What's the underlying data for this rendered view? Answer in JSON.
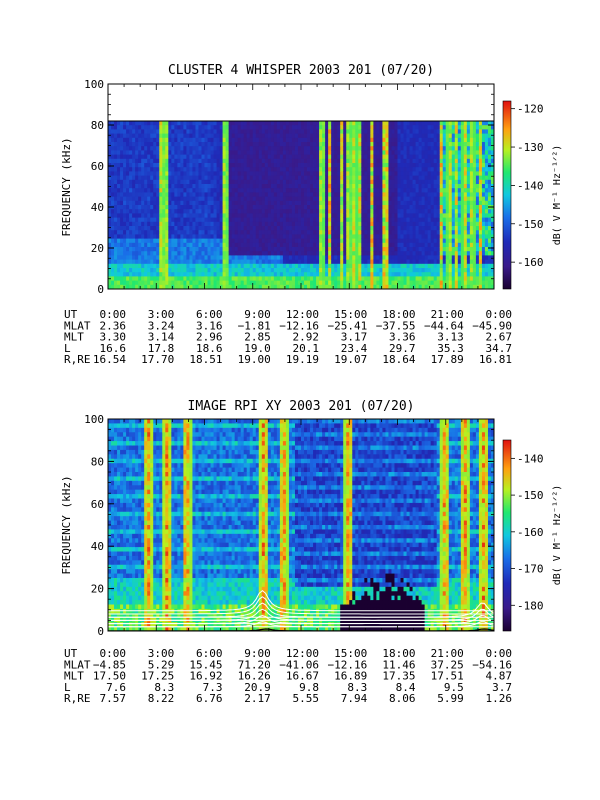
{
  "chart_data": [
    {
      "type": "heatmap",
      "title": "CLUSTER 4 WHISPER 2003 201 (07/20)",
      "ylabel": "FREQUENCY (kHz)",
      "colorbar_label": "dB( V M⁻¹ Hz⁻¹ᐟ²)",
      "ylim": [
        0,
        100
      ],
      "yticks": [
        "0",
        "20",
        "40",
        "60",
        "80",
        "100"
      ],
      "data_max_freq_khz": 80,
      "colorbar_range_db": [
        -167,
        -118
      ],
      "colorbar_ticks": [
        "-120",
        "-130",
        "-140",
        "-150",
        "-160"
      ],
      "colormap": "rainbow (dark blue/purple low, red high)",
      "x_row_labels": [
        "UT",
        "MLAT",
        "MLT",
        "L",
        "R,RE"
      ],
      "x": [
        "0:00",
        "3:00",
        "6:00",
        "9:00",
        "12:00",
        "15:00",
        "18:00",
        "21:00",
        "0:00"
      ],
      "ephemeris": {
        "MLAT": [
          "2.36",
          "3.24",
          "3.16",
          "−1.81",
          "−12.16",
          "−25.41",
          "−37.55",
          "−44.64",
          "−45.90"
        ],
        "MLT": [
          "3.30",
          "3.14",
          "2.96",
          "2.85",
          "2.92",
          "3.17",
          "3.36",
          "3.13",
          "2.67"
        ],
        "L": [
          "16.6",
          "17.8",
          "18.6",
          "19.0",
          "20.1",
          "23.4",
          "29.7",
          "35.3",
          "34.7"
        ],
        "R,RE": [
          "16.54",
          "17.70",
          "18.51",
          "19.00",
          "19.19",
          "19.07",
          "18.64",
          "17.89",
          "16.81"
        ]
      }
    },
    {
      "type": "heatmap",
      "title": "IMAGE RPI XY 2003 201 (07/20)",
      "ylabel": "FREQUENCY (kHz)",
      "colorbar_label": "dB( V M⁻¹ Hz⁻¹ᐟ²)",
      "ylim": [
        0,
        100
      ],
      "yticks": [
        "0",
        "20",
        "40",
        "60",
        "80",
        "100"
      ],
      "colorbar_range_db": [
        -187,
        -135
      ],
      "colorbar_ticks": [
        "-140",
        "-150",
        "-160",
        "-170",
        "-180"
      ],
      "colormap": "rainbow (dark blue/purple low, red high)",
      "overlays": "white plasma-frequency contour curves and black gyrofrequency curves",
      "x_row_labels": [
        "UT",
        "MLAT",
        "MLT",
        "L",
        "R,RE"
      ],
      "x": [
        "0:00",
        "3:00",
        "6:00",
        "9:00",
        "12:00",
        "15:00",
        "18:00",
        "21:00",
        "0:00"
      ],
      "ephemeris": {
        "MLAT": [
          "−4.85",
          "5.29",
          "15.45",
          "71.20",
          "−41.06",
          "−12.16",
          "11.46",
          "37.25",
          "−54.16"
        ],
        "MLT": [
          "17.50",
          "17.25",
          "16.92",
          "16.26",
          "16.67",
          "16.89",
          "17.35",
          "17.51",
          "4.87"
        ],
        "L": [
          "7.6",
          "8.3",
          "7.3",
          "20.9",
          "9.8",
          "8.3",
          "8.4",
          "9.5",
          "3.7"
        ],
        "R,RE": [
          "7.57",
          "8.22",
          "6.76",
          "2.17",
          "5.55",
          "7.94",
          "8.06",
          "5.99",
          "1.26"
        ]
      }
    }
  ]
}
